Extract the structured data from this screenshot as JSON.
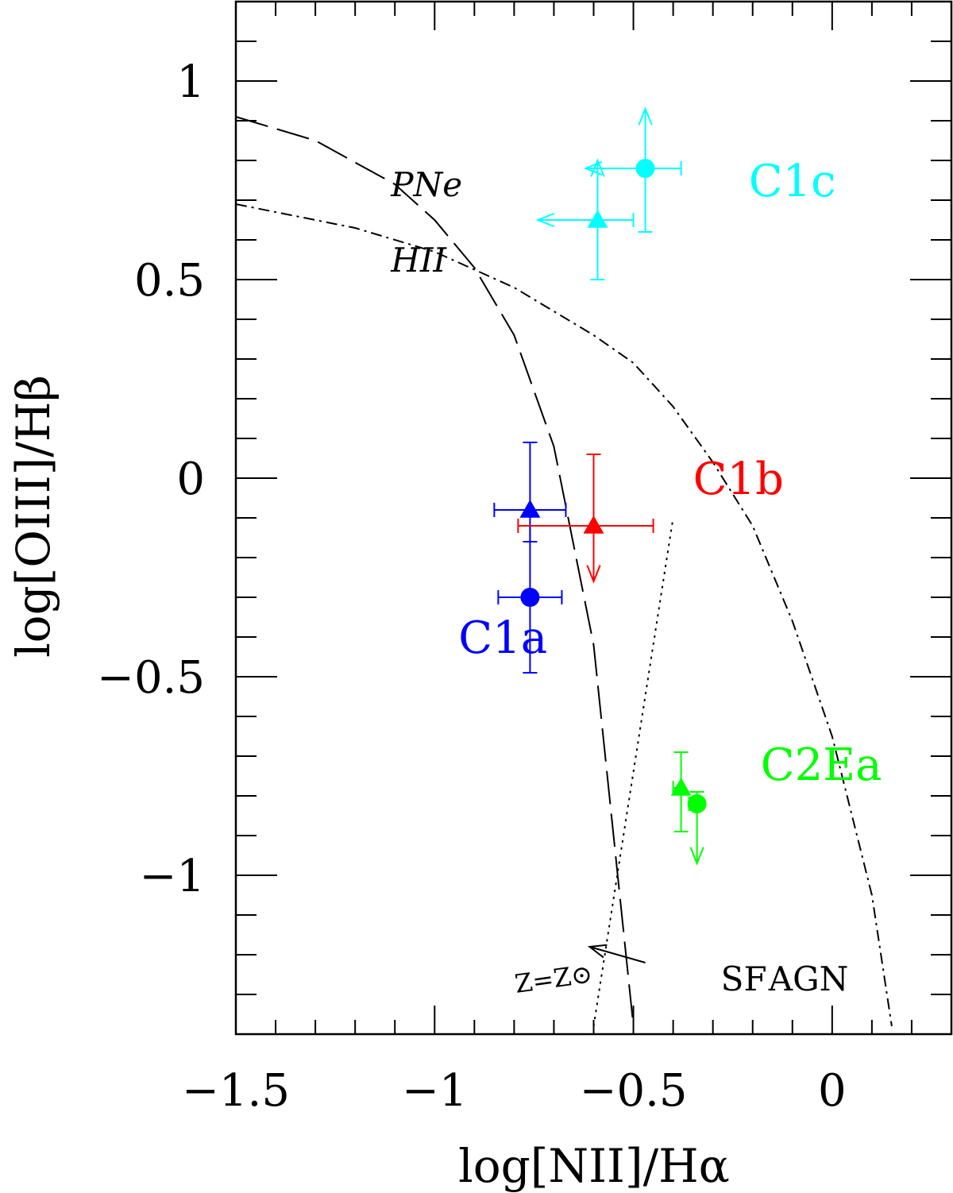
{
  "chart_data": {
    "type": "scatter",
    "title": "",
    "xlabel": "log[NII]/Hα",
    "ylabel": "log[OIII]/Hβ",
    "xlim": [
      -1.5,
      0.3
    ],
    "ylim": [
      -1.4,
      1.2
    ],
    "x_ticks": [
      {
        "value": -1.5,
        "label": "−1.5"
      },
      {
        "value": -1.0,
        "label": "−1"
      },
      {
        "value": -0.5,
        "label": "−0.5"
      },
      {
        "value": 0.0,
        "label": "0"
      }
    ],
    "y_ticks": [
      {
        "value": 1.0,
        "label": "1"
      },
      {
        "value": 0.5,
        "label": "0.5"
      },
      {
        "value": 0.0,
        "label": "0"
      },
      {
        "value": -0.5,
        "label": "−0.5"
      },
      {
        "value": -1.0,
        "label": "−1"
      }
    ],
    "curves": [
      {
        "style": "long-dash",
        "points": [
          [
            -1.5,
            0.91
          ],
          [
            -1.3,
            0.85
          ],
          [
            -1.1,
            0.74
          ],
          [
            -1.0,
            0.65
          ],
          [
            -0.9,
            0.53
          ],
          [
            -0.8,
            0.36
          ],
          [
            -0.7,
            0.08
          ],
          [
            -0.6,
            -0.42
          ],
          [
            -0.5,
            -1.38
          ]
        ]
      },
      {
        "style": "dash-dot",
        "points": [
          [
            -1.5,
            0.69
          ],
          [
            -1.2,
            0.63
          ],
          [
            -1.0,
            0.57
          ],
          [
            -0.8,
            0.48
          ],
          [
            -0.6,
            0.36
          ],
          [
            -0.5,
            0.29
          ],
          [
            -0.4,
            0.18
          ],
          [
            -0.3,
            0.04
          ],
          [
            -0.2,
            -0.12
          ],
          [
            -0.1,
            -0.36
          ],
          [
            0.0,
            -0.65
          ],
          [
            0.1,
            -1.05
          ],
          [
            0.15,
            -1.38
          ]
        ]
      },
      {
        "style": "dotted",
        "points": [
          [
            -0.6,
            -1.38
          ],
          [
            -0.4,
            -0.1
          ]
        ]
      }
    ],
    "metallicity_arrow": {
      "from": [
        -0.47,
        -1.22
      ],
      "to": [
        -0.61,
        -1.18
      ],
      "label": "Z=Z⊙"
    },
    "region_labels": [
      {
        "text": "PNe",
        "x": -1.11,
        "y": 0.71
      },
      {
        "text": "HII",
        "x": -1.11,
        "y": 0.52
      },
      {
        "text": "SF",
        "x": -0.28,
        "y": -1.29
      },
      {
        "text": "AGN",
        "x": -0.16,
        "y": -1.29
      }
    ],
    "series": [
      {
        "name": "C1a",
        "color": "#0000ff",
        "label_pos": [
          -0.94,
          -0.44
        ],
        "points": [
          {
            "marker": "triangle",
            "x": -0.76,
            "y": -0.08,
            "xerr": [
              0.09,
              0.09
            ],
            "yerr": [
              0.08,
              0.17
            ]
          },
          {
            "marker": "circle",
            "x": -0.76,
            "y": -0.3,
            "xerr": [
              0.08,
              0.08
            ],
            "yerr": [
              0.19,
              0.18
            ]
          }
        ]
      },
      {
        "name": "C1b",
        "color": "#ff0000",
        "label_pos": [
          -0.35,
          -0.04
        ],
        "points": [
          {
            "marker": "triangle",
            "x": -0.6,
            "y": -0.12,
            "xerr": [
              0.19,
              0.15
            ],
            "yerr": [
              0.0,
              0.18
            ],
            "arrow": "down",
            "arrow_len": 0.14
          }
        ]
      },
      {
        "name": "C1c",
        "color": "#00ffff",
        "label_pos": [
          -0.21,
          0.71
        ],
        "points": [
          {
            "marker": "circle",
            "x": -0.47,
            "y": 0.78,
            "xerr": [
              0.0,
              0.09
            ],
            "yerr": [
              0.16,
              0.0
            ],
            "arrow": "up-left",
            "arrow_len": 0.15
          },
          {
            "marker": "triangle",
            "x": -0.59,
            "y": 0.65,
            "xerr": [
              0.0,
              0.09
            ],
            "yerr": [
              0.15,
              0.0
            ],
            "arrow": "up-left",
            "arrow_len": 0.15
          }
        ]
      },
      {
        "name": "C2Ea",
        "color": "#00ff00",
        "label_pos": [
          -0.18,
          -0.76
        ],
        "points": [
          {
            "marker": "triangle",
            "x": -0.38,
            "y": -0.78,
            "xerr": [
              0.02,
              0.0
            ],
            "yerr": [
              0.11,
              0.09
            ]
          },
          {
            "marker": "circle",
            "x": -0.34,
            "y": -0.82,
            "xerr": [
              0.02,
              0.0
            ],
            "yerr": [
              0.0,
              0.03
            ],
            "arrow": "down",
            "arrow_len": 0.15
          }
        ]
      }
    ]
  }
}
